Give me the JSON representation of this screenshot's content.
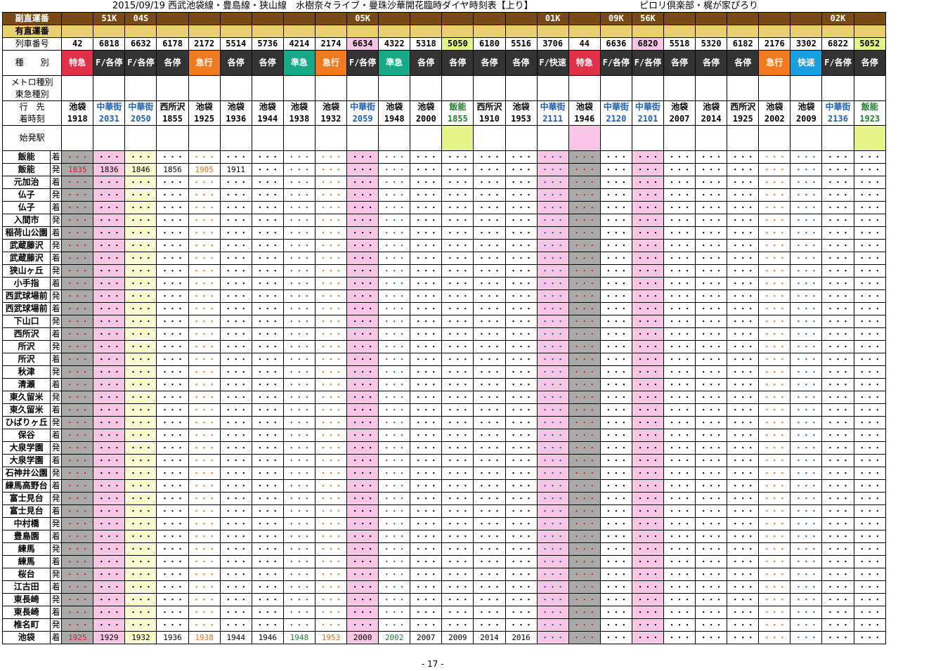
{
  "header": {
    "title": "2015/09/19 西武池袋線・豊島線・狭山線　水樹奈々ライブ・曼珠沙華開花臨時ダイヤ時刻表【上り】",
    "right": "ピロリ倶楽部・梶が家ぴろり"
  },
  "rows_labels": {
    "fuku": "副直運番",
    "yu": "有直運番",
    "ressha": "列車番号",
    "shubetsu": "種　　別",
    "metro": "メトロ種別",
    "tokyu": "東急種別",
    "ikisaki": "行　先",
    "chaku": "着時刻",
    "hatsu": "始発駅"
  },
  "run_numbers": [
    "",
    "51K",
    "04S",
    "",
    "",
    "",
    "",
    "",
    "",
    "05K",
    "",
    "",
    "",
    "",
    "",
    "01K",
    "",
    "09K",
    "56K",
    "",
    "",
    "",
    "",
    "",
    "02K",
    ""
  ],
  "train_numbers": [
    "42",
    "6818",
    "6632",
    "6178",
    "2172",
    "5514",
    "5736",
    "4214",
    "2174",
    "6634",
    "4322",
    "5318",
    "5050",
    "6180",
    "5516",
    "3706",
    "44",
    "6636",
    "6820",
    "5518",
    "5320",
    "6182",
    "2176",
    "3302",
    "6822",
    "5052"
  ],
  "types": [
    "特急",
    "F/各停",
    "F/各停",
    "各停",
    "急行",
    "各停",
    "各停",
    "準急",
    "急行",
    "F/各停",
    "準急",
    "各停",
    "各停",
    "各停",
    "各停",
    "F/快速",
    "特急",
    "F/各停",
    "F/各停",
    "各停",
    "各停",
    "各停",
    "急行",
    "快速",
    "F/各停",
    "各停"
  ],
  "dest_names": [
    "池袋",
    "中華街",
    "中華街",
    "西所沢",
    "池袋",
    "池袋",
    "池袋",
    "池袋",
    "池袋",
    "中華街",
    "池袋",
    "池袋",
    "飯能",
    "西所沢",
    "池袋",
    "中華街",
    "池袋",
    "中華街",
    "中華街",
    "池袋",
    "池袋",
    "西所沢",
    "池袋",
    "池袋",
    "中華街",
    "飯能"
  ],
  "dest_times": [
    "1918",
    "2031",
    "2050",
    "1855",
    "1925",
    "1936",
    "1944",
    "1938",
    "1932",
    "2059",
    "1948",
    "2000",
    "1855",
    "1910",
    "1953",
    "2111",
    "1946",
    "2120",
    "2101",
    "2007",
    "2014",
    "1925",
    "2002",
    "2009",
    "2136",
    "1923"
  ],
  "stations": [
    "飯能",
    "元加治",
    "仏子",
    "入間市",
    "稲荷山公園",
    "武蔵藤沢",
    "狭山ヶ丘",
    "小手指",
    "西武球場前",
    "下山口",
    "西所沢",
    "所沢",
    "秋津",
    "清瀬",
    "東久留米",
    "ひばりヶ丘",
    "保谷",
    "大泉学園",
    "石神井公園",
    "練馬高野台",
    "富士見台",
    "中村橋",
    "豊島園",
    "練馬",
    "桜台",
    "江古田",
    "東長崎",
    "椎名町",
    "池袋"
  ],
  "page_number": "- 17 -",
  "sample_times": {
    "hanno": [
      "1835",
      "1836",
      "1846",
      "1856",
      "1905",
      "1911"
    ],
    "ikebukuro": [
      "1925",
      "1929",
      "1932",
      "1936",
      "1938",
      "1944",
      "1946",
      "1948",
      "1953",
      "2000",
      "2002",
      "2007",
      "2009",
      "2014",
      "2016"
    ]
  }
}
